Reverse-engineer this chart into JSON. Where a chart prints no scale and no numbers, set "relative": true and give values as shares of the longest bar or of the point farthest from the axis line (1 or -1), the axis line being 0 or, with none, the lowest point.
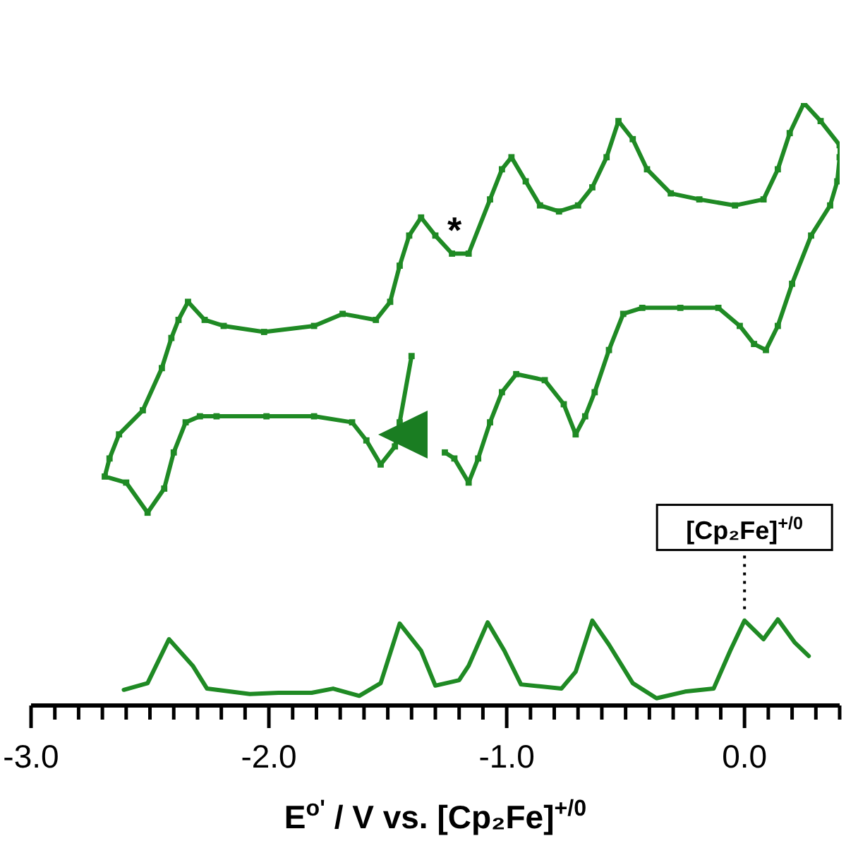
{
  "chart_data": {
    "type": "line",
    "relative": true,
    "xlabel": "E$^{o'}$ / V vs. [Cp₂Fe]$^{+/0}$",
    "xlim": [
      -3.0,
      0.4
    ],
    "xticks": [
      {
        "value": -3.0,
        "label": "-3.0"
      },
      {
        "value": -2.9,
        "label": null
      },
      {
        "value": -2.8,
        "label": null
      },
      {
        "value": -2.7,
        "label": null
      },
      {
        "value": -2.6,
        "label": null
      },
      {
        "value": -2.5,
        "label": null
      },
      {
        "value": -2.4,
        "label": null
      },
      {
        "value": -2.3,
        "label": null
      },
      {
        "value": -2.2,
        "label": null
      },
      {
        "value": -2.1,
        "label": null
      },
      {
        "value": -2.0,
        "label": "-2.0"
      },
      {
        "value": -1.9,
        "label": null
      },
      {
        "value": -1.8,
        "label": null
      },
      {
        "value": -1.7,
        "label": null
      },
      {
        "value": -1.6,
        "label": null
      },
      {
        "value": -1.5,
        "label": null
      },
      {
        "value": -1.4,
        "label": null
      },
      {
        "value": -1.3,
        "label": null
      },
      {
        "value": -1.2,
        "label": null
      },
      {
        "value": -1.1,
        "label": null
      },
      {
        "value": -1.0,
        "label": "-1.0"
      },
      {
        "value": -0.9,
        "label": null
      },
      {
        "value": -0.8,
        "label": null
      },
      {
        "value": -0.7,
        "label": null
      },
      {
        "value": -0.6,
        "label": null
      },
      {
        "value": -0.5,
        "label": null
      },
      {
        "value": -0.4,
        "label": null
      },
      {
        "value": -0.3,
        "label": null
      },
      {
        "value": -0.2,
        "label": null
      },
      {
        "value": -0.1,
        "label": null
      },
      {
        "value": 0.0,
        "label": "0.0"
      },
      {
        "value": 0.1,
        "label": null
      },
      {
        "value": 0.2,
        "label": null
      },
      {
        "value": 0.3,
        "label": null
      },
      {
        "value": 0.4,
        "label": null
      }
    ],
    "tick_labels": "x",
    "annotations": [
      "*",
      {
        "text": "[Cp₂Fe]$^{+/0}$",
        "x": 0.0,
        "y": 0.141
      }
    ],
    "series": [
      {
        "color": "#1f8a24",
        "marker": "square",
        "x": [
          -1.4,
          -1.45,
          -1.47,
          -1.53,
          -1.59,
          -1.65,
          -1.81,
          -2.01,
          -2.22,
          -2.29,
          -2.35,
          -2.4,
          -2.44,
          -2.51,
          -2.6,
          -2.69,
          -2.67,
          -2.63,
          -2.53,
          -2.45,
          -2.41,
          -2.38,
          -2.34,
          -2.27,
          -2.19,
          -2.02,
          -1.81,
          -1.69,
          -1.55,
          -1.49,
          -1.45,
          -1.41,
          -1.36,
          -1.3,
          -1.23,
          -1.16,
          -1.07,
          -1.02,
          -0.98,
          -0.92,
          -0.86,
          -0.78,
          -0.7,
          -0.64,
          -0.58,
          -0.53,
          -0.47,
          -0.41,
          -0.31,
          -0.19,
          -0.04,
          0.08,
          0.14,
          0.19,
          0.25,
          0.32,
          0.4,
          0.4,
          0.39,
          0.36,
          0.28,
          0.2,
          0.14,
          0.09,
          0.04,
          -0.02,
          -0.11,
          -0.27,
          -0.43,
          -0.51,
          -0.57,
          -0.63,
          -0.67,
          -0.71,
          -0.76,
          -0.84,
          -0.96,
          -1.02,
          -1.07,
          -1.12,
          -1.16,
          -1.22,
          -1.26
        ],
        "values": [
          0.58,
          0.47,
          0.43,
          0.4,
          0.44,
          0.47,
          0.48,
          0.48,
          0.48,
          0.48,
          0.47,
          0.42,
          0.36,
          0.32,
          0.37,
          0.38,
          0.41,
          0.45,
          0.49,
          0.56,
          0.61,
          0.64,
          0.67,
          0.64,
          0.63,
          0.62,
          0.63,
          0.65,
          0.64,
          0.67,
          0.73,
          0.78,
          0.81,
          0.78,
          0.75,
          0.75,
          0.84,
          0.89,
          0.91,
          0.87,
          0.83,
          0.82,
          0.83,
          0.86,
          0.91,
          0.97,
          0.94,
          0.89,
          0.85,
          0.84,
          0.83,
          0.84,
          0.89,
          0.95,
          1.0,
          0.97,
          0.93,
          0.91,
          0.87,
          0.83,
          0.78,
          0.7,
          0.63,
          0.59,
          0.6,
          0.63,
          0.66,
          0.66,
          0.66,
          0.65,
          0.59,
          0.52,
          0.48,
          0.45,
          0.5,
          0.54,
          0.55,
          0.52,
          0.47,
          0.41,
          0.37,
          0.41,
          0.42
        ]
      },
      {
        "color": "#1f8a24",
        "marker": "none",
        "x": [
          -2.61,
          -2.51,
          -2.42,
          -2.32,
          -2.26,
          -2.08,
          -1.96,
          -1.82,
          -1.73,
          -1.62,
          -1.53,
          -1.45,
          -1.36,
          -1.3,
          -1.2,
          -1.16,
          -1.08,
          -1.01,
          -0.94,
          -0.77,
          -0.71,
          -0.64,
          -0.57,
          -0.47,
          -0.37,
          -0.25,
          -0.13,
          -0.06,
          0.0,
          0.08,
          0.14,
          0.21,
          0.27
        ],
        "values": [
          0.026,
          0.037,
          0.11,
          0.066,
          0.028,
          0.019,
          0.021,
          0.021,
          0.028,
          0.016,
          0.037,
          0.136,
          0.091,
          0.033,
          0.042,
          0.066,
          0.138,
          0.091,
          0.035,
          0.028,
          0.056,
          0.141,
          0.101,
          0.037,
          0.012,
          0.023,
          0.028,
          0.091,
          0.141,
          0.11,
          0.143,
          0.105,
          0.082
        ]
      }
    ]
  }
}
